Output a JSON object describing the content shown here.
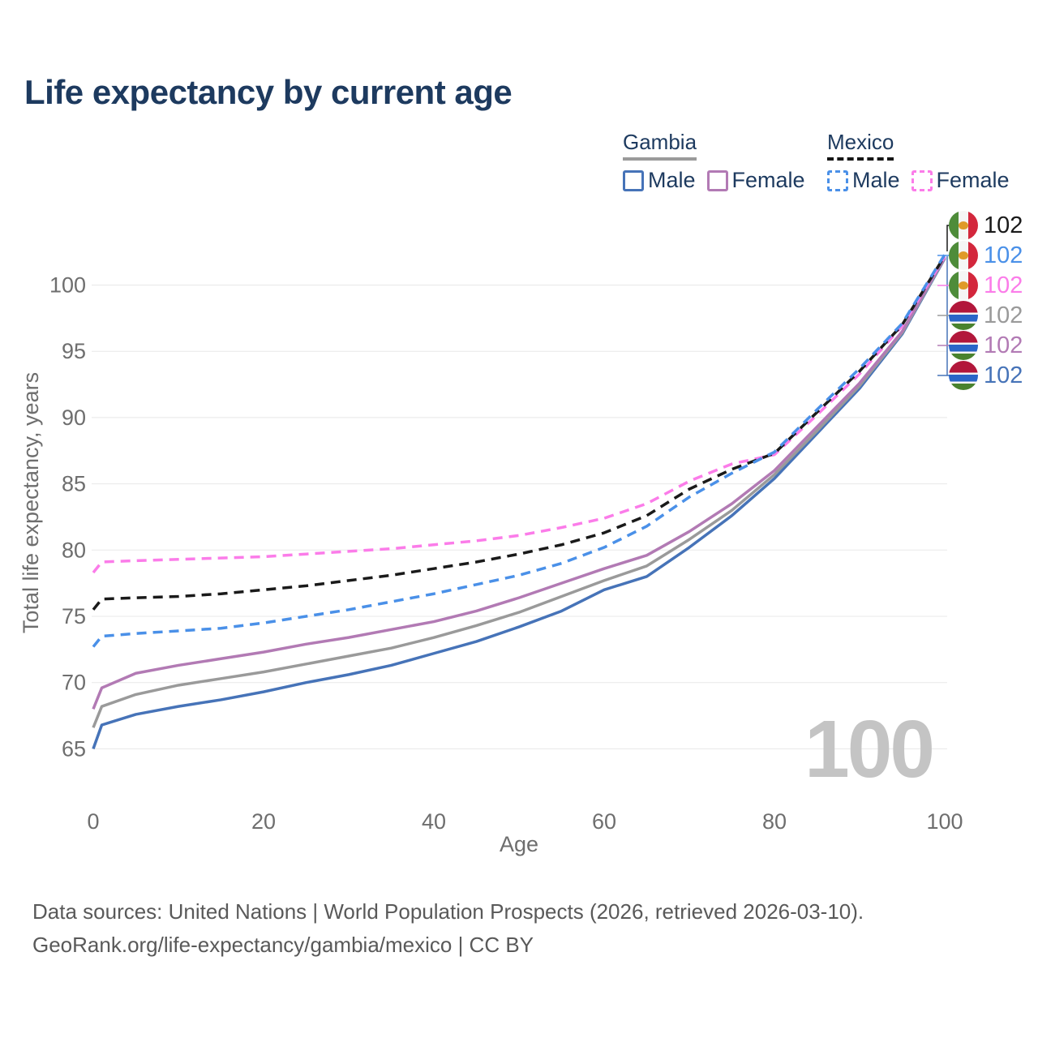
{
  "title": "Life expectancy by current age",
  "legend": {
    "groups": [
      {
        "label": "Gambia",
        "line_style": "solid",
        "underline_color": "#9a9a9a",
        "items": [
          {
            "label": "Male",
            "color": "#4673b8",
            "dashed": false
          },
          {
            "label": "Female",
            "color": "#b27ab4",
            "dashed": false
          }
        ]
      },
      {
        "label": "Mexico",
        "line_style": "dashed",
        "underline_color": "#161616",
        "items": [
          {
            "label": "Male",
            "color": "#4a90e8",
            "dashed": true
          },
          {
            "label": "Female",
            "color": "#fb7ce9",
            "dashed": true
          }
        ]
      }
    ]
  },
  "footer": {
    "line1": "Data sources: United Nations | World Population Prospects (2026, retrieved 2026-03-10).",
    "line2": "GeoRank.org/life-expectancy/gambia/mexico | CC BY"
  },
  "chart_data": {
    "type": "line",
    "title": "Life expectancy by current age",
    "xlabel": "Age",
    "ylabel": "Total life expectancy, years",
    "xlim": [
      0,
      100
    ],
    "ylim": [
      63.5,
      103
    ],
    "xticks": [
      0,
      20,
      40,
      60,
      80,
      100
    ],
    "yticks": [
      65,
      70,
      75,
      80,
      85,
      90,
      95,
      100
    ],
    "grid": "horizontal",
    "legend_position": "top-right",
    "watermark": "100",
    "x": [
      0,
      1,
      5,
      10,
      15,
      20,
      25,
      30,
      35,
      40,
      45,
      50,
      55,
      60,
      65,
      70,
      75,
      80,
      85,
      90,
      95,
      100
    ],
    "series": [
      {
        "id": "gambia-male",
        "name": "Gambia Male",
        "color": "#4673b8",
        "dashed": false,
        "values": [
          65.0,
          66.8,
          67.6,
          68.2,
          68.7,
          69.3,
          70.0,
          70.6,
          71.3,
          72.2,
          73.1,
          74.2,
          75.4,
          77.0,
          78.0,
          80.2,
          82.6,
          85.4,
          88.8,
          92.2,
          96.3,
          102.0
        ]
      },
      {
        "id": "gambia-total",
        "name": "Gambia Both sexes",
        "color": "#9a9a9a",
        "dashed": false,
        "values": [
          66.6,
          68.2,
          69.1,
          69.8,
          70.3,
          70.8,
          71.4,
          72.0,
          72.6,
          73.4,
          74.3,
          75.3,
          76.5,
          77.7,
          78.8,
          80.8,
          83.0,
          85.7,
          89.0,
          92.4,
          96.4,
          102.05
        ]
      },
      {
        "id": "gambia-female",
        "name": "Gambia Female",
        "color": "#b27ab4",
        "dashed": false,
        "values": [
          68.0,
          69.6,
          70.7,
          71.3,
          71.8,
          72.3,
          72.9,
          73.4,
          74.0,
          74.6,
          75.4,
          76.4,
          77.5,
          78.6,
          79.6,
          81.4,
          83.5,
          86.0,
          89.3,
          92.6,
          96.5,
          102.1
        ]
      },
      {
        "id": "mexico-female",
        "name": "Mexico Female",
        "color": "#fb7ce9",
        "dashed": true,
        "values": [
          78.3,
          79.1,
          79.2,
          79.3,
          79.4,
          79.5,
          79.7,
          79.9,
          80.1,
          80.4,
          80.7,
          81.1,
          81.7,
          82.4,
          83.5,
          85.2,
          86.5,
          87.2,
          90.2,
          93.3,
          96.9,
          102.15
        ]
      },
      {
        "id": "mexico-total",
        "name": "Mexico Both sexes",
        "color": "#1a1a1a",
        "dashed": true,
        "values": [
          75.5,
          76.3,
          76.4,
          76.5,
          76.7,
          77.0,
          77.3,
          77.7,
          78.1,
          78.6,
          79.1,
          79.7,
          80.4,
          81.3,
          82.6,
          84.6,
          86.1,
          87.3,
          90.4,
          93.5,
          97.0,
          102.2
        ]
      },
      {
        "id": "mexico-male",
        "name": "Mexico Male",
        "color": "#4a90e8",
        "dashed": true,
        "values": [
          72.7,
          73.5,
          73.7,
          73.9,
          74.1,
          74.5,
          75.0,
          75.5,
          76.1,
          76.7,
          77.4,
          78.1,
          79.0,
          80.2,
          81.8,
          84.0,
          85.8,
          87.4,
          90.6,
          93.7,
          97.1,
          102.3
        ]
      }
    ],
    "end_labels": [
      {
        "flag": "mexico",
        "value": "102",
        "color": "#1a1a1a",
        "series": "mexico-total"
      },
      {
        "flag": "mexico",
        "value": "102",
        "color": "#4a90e8",
        "series": "mexico-male"
      },
      {
        "flag": "mexico",
        "value": "102",
        "color": "#fb7ce9",
        "series": "mexico-female"
      },
      {
        "flag": "gambia",
        "value": "102",
        "color": "#9a9a9a",
        "series": "gambia-total"
      },
      {
        "flag": "gambia",
        "value": "102",
        "color": "#b27ab4",
        "series": "gambia-female"
      },
      {
        "flag": "gambia",
        "value": "102",
        "color": "#4673b8",
        "series": "gambia-male"
      }
    ],
    "colors": {
      "grid": "#e8e8e8",
      "axis_text": "#6e6e6e",
      "watermark": "#c4c4c4",
      "leader_black": "#1a1a1a",
      "leader_blue": "#4673b8"
    }
  }
}
